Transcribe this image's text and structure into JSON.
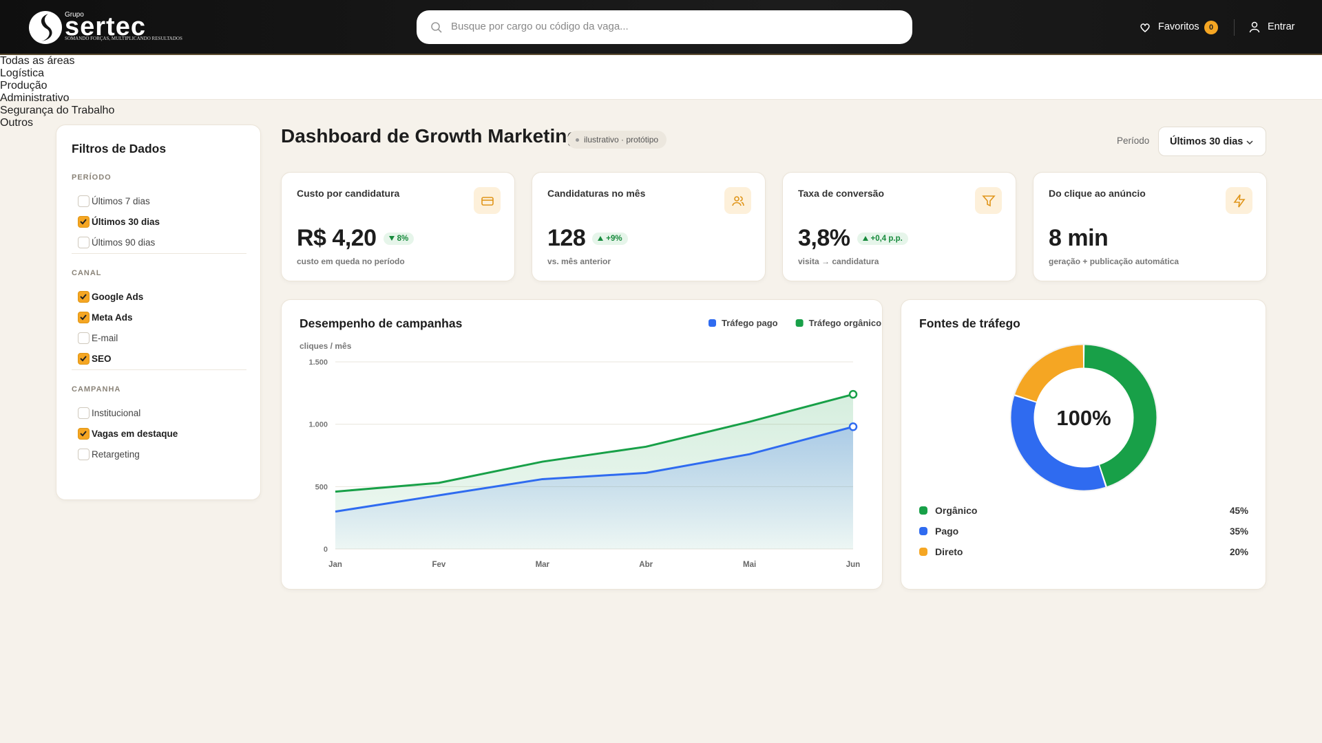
{
  "header": {
    "logo_small": "Grupo",
    "logo": "sertec",
    "tagline": "SOMANDO FORÇAS, MULTIPLICANDO RESULTADOS",
    "search_placeholder": "Busque por cargo ou código da vaga...",
    "favorites": "Favoritos",
    "favorites_count": 0,
    "login": "Entrar"
  },
  "tabs": {
    "items": [
      "Todas as áreas",
      "Logística",
      "Produção",
      "Administrativo",
      "Segurança do Trabalho",
      "Outros"
    ],
    "active": 0
  },
  "filters": {
    "title": "Filtros de Dados",
    "groups": [
      {
        "label": "PERÍODO",
        "options": [
          {
            "label": "Últimos 7 dias",
            "checked": false
          },
          {
            "label": "Últimos 30 dias",
            "checked": true
          },
          {
            "label": "Últimos 90 dias",
            "checked": false
          }
        ]
      },
      {
        "label": "CANAL",
        "options": [
          {
            "label": "Google Ads",
            "checked": true
          },
          {
            "label": "Meta Ads",
            "checked": true
          },
          {
            "label": "E-mail",
            "checked": false
          },
          {
            "label": "SEO",
            "checked": true
          }
        ]
      },
      {
        "label": "CAMPANHA",
        "options": [
          {
            "label": "Institucional",
            "checked": false
          },
          {
            "label": "Vagas em destaque",
            "checked": true
          },
          {
            "label": "Retargeting",
            "checked": false
          }
        ]
      }
    ]
  },
  "dashboard": {
    "title": "Dashboard de Growth Marketing",
    "badge": "ilustrativo · protótipo",
    "period_label": "Período",
    "period_value": "Últimos 30 dias"
  },
  "kpis": [
    {
      "label": "Custo por candidatura",
      "value": "R$ 4,20",
      "delta": "8%",
      "trend": "down",
      "note": "custo em queda no período"
    },
    {
      "label": "Candidaturas no mês",
      "value": "128",
      "delta": "+9%",
      "trend": "up",
      "note": "vs. mês anterior"
    },
    {
      "label": "Taxa de conversão",
      "value": "3,8%",
      "delta": "+0,4 p.p.",
      "trend": "up",
      "note": "visita → candidatura"
    },
    {
      "label": "Do clique ao anúncio",
      "value": "8 min",
      "note": "geração + publicação automática"
    }
  ],
  "chart_data": [
    {
      "type": "line",
      "title": "Desempenho de campanhas",
      "y_label": "cliques / mês",
      "categories": [
        "Jan",
        "Fev",
        "Mar",
        "Abr",
        "Mai",
        "Jun"
      ],
      "ylim": [
        0,
        1500
      ],
      "yticks": [
        0,
        500,
        {
          "value": 1000,
          "label": "1.000"
        },
        {
          "value": 1500,
          "label": "1.500"
        }
      ],
      "grid": true,
      "legend": "top-right",
      "series": [
        {
          "name": "Tráfego pago",
          "color": "#2f6bf0",
          "values": [
            300,
            430,
            560,
            610,
            760,
            980
          ]
        },
        {
          "name": "Tráfego orgânico",
          "color": "#18a048",
          "values": [
            460,
            530,
            700,
            820,
            1020,
            1240
          ]
        }
      ]
    },
    {
      "type": "pie",
      "donut": true,
      "title": "Fontes de tráfego",
      "center_label": "100%",
      "categories": [
        "Orgânico",
        "Pago",
        "Direto"
      ],
      "values": [
        45,
        35,
        20
      ],
      "value_labels": [
        "45%",
        "35%",
        "20%"
      ],
      "colors": [
        "#18a048",
        "#2f6bf0",
        "#f5a623"
      ]
    }
  ]
}
